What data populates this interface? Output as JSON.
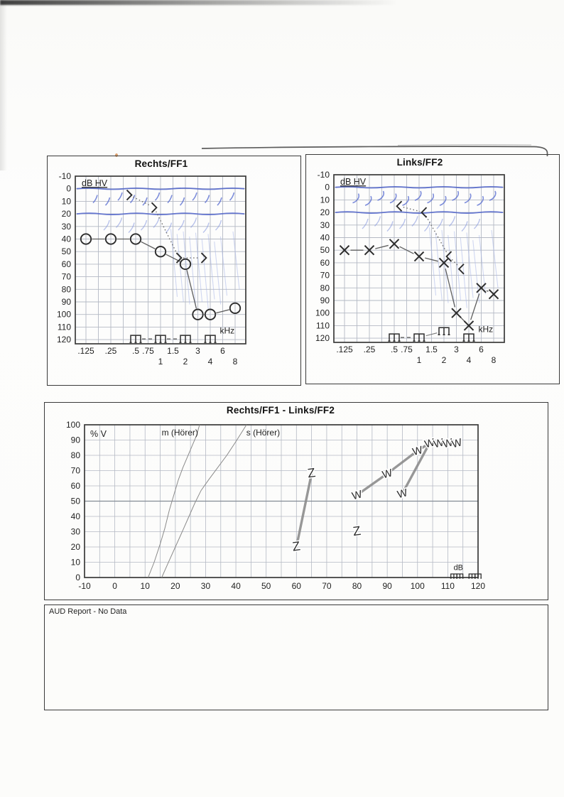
{
  "panels": {
    "right_ear": {
      "title": "Rechts/FF1"
    },
    "left_ear": {
      "title": "Links/FF2"
    },
    "speech": {
      "title": "Rechts/FF1 - Links/FF2"
    },
    "report": {
      "text": "AUD Report - No Data"
    }
  },
  "colors": {
    "ink": "#2d2d2d",
    "grid": "#b4b9c4",
    "border": "#3a3a3a",
    "blue_ink": "#4d61c9",
    "blue_slash": "#5c70d2",
    "blue_faint": "#a5b3e8",
    "speech_line": "#8c8c8c"
  },
  "chart_data": [
    {
      "id": "audiogram-rechts-ff1",
      "type": "scatter",
      "title": "Rechts/FF1",
      "corner_label": "dB HV",
      "x_unit_label": "kHz",
      "ylim": [
        -10,
        120
      ],
      "y_step_db": 10,
      "y_ticks": [
        -10,
        0,
        10,
        20,
        30,
        40,
        50,
        60,
        70,
        80,
        90,
        100,
        110,
        120
      ],
      "x_tick_labels": [
        ".125",
        ".25",
        ".5",
        ".75",
        "1",
        "1.5",
        "2",
        "3",
        "4",
        "6",
        "8"
      ],
      "lower_row_labels": [
        "1",
        "2",
        "4",
        "8"
      ],
      "series": [
        {
          "name": "air-conduction-right",
          "marker": "O",
          "line_style": "solid",
          "points": [
            [
              0.125,
              40
            ],
            [
              0.25,
              40
            ],
            [
              0.5,
              40
            ],
            [
              1,
              50
            ],
            [
              2,
              60
            ],
            [
              3,
              100
            ],
            [
              4,
              100
            ],
            [
              8,
              95
            ]
          ]
        },
        {
          "name": "bone-conduction-right",
          "marker": ">",
          "line_style": "dotted",
          "points": [
            [
              0.5,
              5
            ],
            [
              1,
              15
            ],
            [
              2,
              55
            ],
            [
              4,
              55
            ]
          ]
        },
        {
          "name": "uncomfortable-level-right",
          "marker": "Π",
          "line_style": "dashed",
          "points": [
            [
              0.5,
              120
            ],
            [
              1,
              120
            ],
            [
              2,
              120
            ],
            [
              4,
              120
            ]
          ],
          "connect_segments": [
            [
              0,
              1
            ],
            [
              1,
              2
            ]
          ]
        }
      ]
    },
    {
      "id": "audiogram-links-ff2",
      "type": "scatter",
      "title": "Links/FF2",
      "corner_label": "dB HV",
      "x_unit_label": "kHz",
      "ylim": [
        -10,
        120
      ],
      "y_step_db": 10,
      "y_ticks": [
        -10,
        0,
        10,
        20,
        30,
        40,
        50,
        60,
        70,
        80,
        90,
        100,
        110,
        120
      ],
      "x_tick_labels": [
        ".125",
        ".25",
        ".5",
        ".75",
        "1",
        "1.5",
        "2",
        "3",
        "4",
        "6",
        "8"
      ],
      "lower_row_labels": [
        "1",
        "2",
        "4",
        "8"
      ],
      "series": [
        {
          "name": "air-conduction-left",
          "marker": "X",
          "line_style": "solid",
          "points": [
            [
              0.125,
              50
            ],
            [
              0.25,
              50
            ],
            [
              0.5,
              45
            ],
            [
              1,
              55
            ],
            [
              2,
              60
            ],
            [
              3,
              100
            ],
            [
              4,
              110
            ],
            [
              6,
              80
            ],
            [
              8,
              85
            ]
          ]
        },
        {
          "name": "bone-conduction-left",
          "marker": "<",
          "line_style": "dotted",
          "points": [
            [
              0.5,
              15
            ],
            [
              1,
              20
            ],
            [
              2,
              55
            ],
            [
              3,
              65
            ]
          ]
        },
        {
          "name": "uncomfortable-level-left",
          "marker": "Π",
          "line_style": "dashed",
          "points": [
            [
              0.5,
              120
            ],
            [
              1,
              120
            ],
            [
              2,
              115
            ],
            [
              4,
              120
            ]
          ],
          "connect_segments": [
            [
              0,
              1
            ],
            [
              1,
              2
            ]
          ]
        }
      ]
    },
    {
      "id": "speech-audiogram",
      "type": "line",
      "title": "Rechts/FF1 - Links/FF2",
      "corner_label": "% V",
      "x_unit_label": "dB",
      "xlim": [
        -10,
        120
      ],
      "ylim": [
        0,
        100
      ],
      "x_step_db": 5,
      "y_step_pct": 10,
      "x_ticks": [
        -10,
        0,
        10,
        20,
        30,
        40,
        50,
        60,
        70,
        80,
        90,
        100,
        110,
        120
      ],
      "y_ticks": [
        100,
        90,
        80,
        70,
        60,
        50,
        40,
        30,
        20,
        10,
        0
      ],
      "reference_curves": [
        {
          "label": "m (Hörer)",
          "label_pos": [
            21.5,
            95
          ],
          "points": [
            [
              11,
              0
            ],
            [
              13,
              10
            ],
            [
              15,
              22
            ],
            [
              16.5,
              32
            ],
            [
              18,
              44
            ],
            [
              19.5,
              54
            ],
            [
              21,
              64
            ],
            [
              22.5,
              72
            ],
            [
              24,
              79
            ],
            [
              25.5,
              86
            ],
            [
              27,
              93
            ],
            [
              28,
              100
            ]
          ]
        },
        {
          "label": "s (Hörer)",
          "label_pos": [
            49,
            95
          ],
          "points": [
            [
              15.5,
              0
            ],
            [
              17.5,
              9
            ],
            [
              20,
              20
            ],
            [
              22.5,
              31
            ],
            [
              24.5,
              40
            ],
            [
              26.5,
              49
            ],
            [
              28.5,
              57
            ],
            [
              31,
              64
            ],
            [
              34,
              72
            ],
            [
              37,
              80
            ],
            [
              40,
              89
            ],
            [
              43.5,
              100
            ]
          ]
        }
      ],
      "series": [
        {
          "name": "zahlen-curve",
          "marker": "Z",
          "connect": true,
          "points": [
            [
              60,
              20
            ],
            [
              65,
              68
            ]
          ]
        },
        {
          "name": "zahlen-isolated",
          "marker": "Z",
          "connect": false,
          "points": [
            [
              80,
              30
            ]
          ]
        },
        {
          "name": "woerter-curve-1",
          "marker": "W",
          "connect": true,
          "points": [
            [
              80,
              54
            ],
            [
              90,
              68
            ],
            [
              100,
              83
            ],
            [
              104,
              88
            ]
          ]
        },
        {
          "name": "woerter-curve-2",
          "marker": "W",
          "connect": true,
          "points": [
            [
              95,
              55
            ],
            [
              104,
              88
            ]
          ]
        },
        {
          "name": "woerter-plateau",
          "marker": "W",
          "connect": true,
          "points": [
            [
              104,
              88
            ],
            [
              107,
              88
            ],
            [
              110,
              88
            ],
            [
              113,
              88
            ]
          ]
        },
        {
          "name": "uncomfortable-level-speech",
          "marker": "Π",
          "connect": false,
          "points": [
            [
              112,
              0
            ],
            [
              114,
              0
            ],
            [
              118,
              0
            ],
            [
              120,
              0
            ]
          ]
        }
      ]
    }
  ]
}
